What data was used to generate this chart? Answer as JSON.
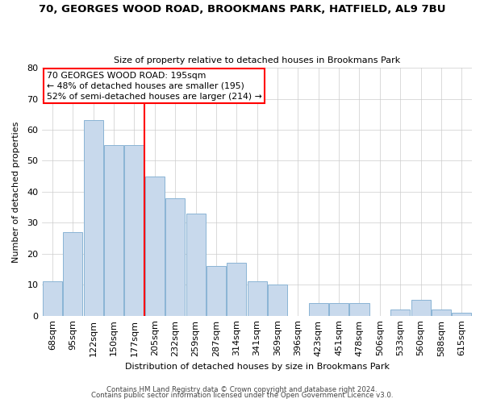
{
  "title": "70, GEORGES WOOD ROAD, BROOKMANS PARK, HATFIELD, AL9 7BU",
  "subtitle": "Size of property relative to detached houses in Brookmans Park",
  "xlabel": "Distribution of detached houses by size in Brookmans Park",
  "ylabel": "Number of detached properties",
  "bar_color": "#c8d9ec",
  "bar_edgecolor": "#8ab4d4",
  "background_color": "#ffffff",
  "grid_color": "#cccccc",
  "vline_color": "red",
  "annotation_line1": "70 GEORGES WOOD ROAD: 195sqm",
  "annotation_line2": "← 48% of detached houses are smaller (195)",
  "annotation_line3": "52% of semi-detached houses are larger (214) →",
  "footer_line1": "Contains HM Land Registry data © Crown copyright and database right 2024.",
  "footer_line2": "Contains public sector information licensed under the Open Government Licence v3.0.",
  "categories": [
    "68sqm",
    "95sqm",
    "122sqm",
    "150sqm",
    "177sqm",
    "205sqm",
    "232sqm",
    "259sqm",
    "287sqm",
    "314sqm",
    "341sqm",
    "369sqm",
    "396sqm",
    "423sqm",
    "451sqm",
    "478sqm",
    "506sqm",
    "533sqm",
    "560sqm",
    "588sqm",
    "615sqm"
  ],
  "values": [
    11,
    27,
    63,
    55,
    55,
    45,
    38,
    33,
    16,
    17,
    11,
    10,
    0,
    4,
    4,
    4,
    0,
    2,
    5,
    2,
    1
  ],
  "n_bars": 21,
  "vline_bar_index": 5,
  "ylim_max": 80,
  "ytick_step": 10
}
